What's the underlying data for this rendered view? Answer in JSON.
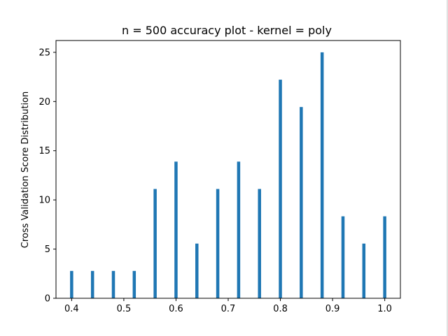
{
  "chart_data": {
    "type": "bar",
    "title": "n = 500 accuracy plot - kernel = poly",
    "xlabel": "",
    "ylabel": "Cross Validation Score Distribution",
    "x": [
      0.4,
      0.44,
      0.48,
      0.52,
      0.56,
      0.6,
      0.64,
      0.68,
      0.72,
      0.76,
      0.8,
      0.84,
      0.88,
      0.92,
      0.96,
      1.0
    ],
    "values": [
      2.78,
      2.78,
      2.78,
      2.78,
      11.11,
      13.89,
      5.56,
      11.11,
      13.89,
      11.11,
      22.22,
      19.44,
      25.0,
      8.33,
      5.56,
      8.33
    ],
    "xlim": [
      0.37,
      1.03
    ],
    "ylim": [
      0,
      26.2
    ],
    "xticks": [
      "0.4",
      "0.5",
      "0.6",
      "0.7",
      "0.8",
      "0.9",
      "1.0"
    ],
    "xtick_values": [
      0.4,
      0.5,
      0.6,
      0.7,
      0.8,
      0.9,
      1.0
    ],
    "yticks": [
      "0",
      "5",
      "10",
      "15",
      "20",
      "25"
    ],
    "ytick_values": [
      0,
      5,
      10,
      15,
      20,
      25
    ],
    "bar_color": "#1f77b4",
    "grid": false,
    "legend": "none"
  }
}
